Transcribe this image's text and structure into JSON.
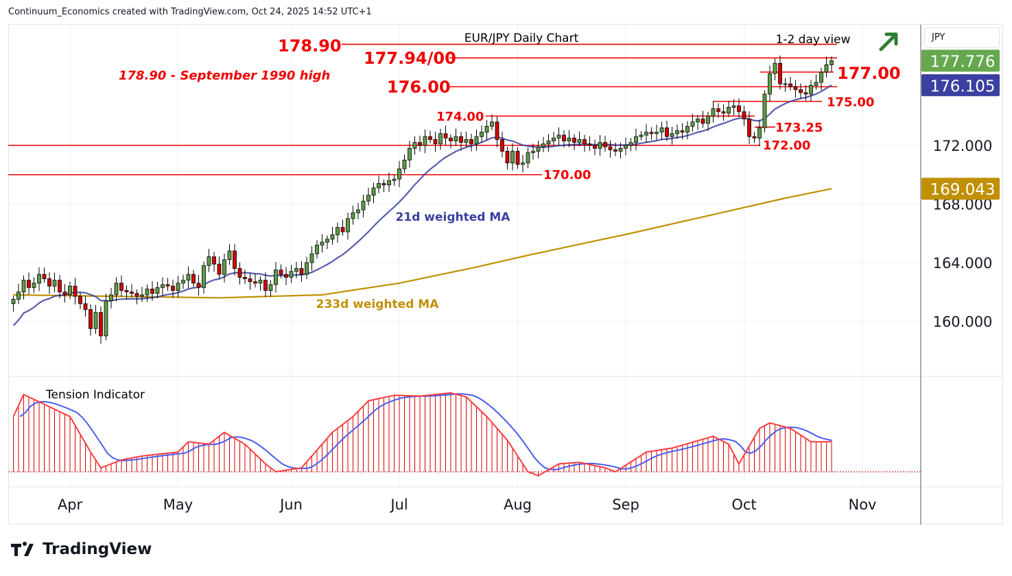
{
  "header": "Continuum_Economics created with TradingView.com, Oct 24, 2025 14:52 UTC+1",
  "title": "EUR/JPY Daily Chart",
  "view": "1-2 day view",
  "currency": "JPY",
  "logo": "TradingView",
  "colors": {
    "up": "#5d9c46",
    "down": "#d10000",
    "ma21": "#3a3fa0",
    "ma233": "#c09000",
    "level": "#f00000",
    "arrow": "#2e7d32"
  },
  "annotations": {
    "note": "178.90 - September 1990 high",
    "ma21_label": "21d weighted MA",
    "ma233_label": "233d weighted MA",
    "tension_label": "Tension Indicator"
  },
  "levels": [
    {
      "value": 178.9,
      "label": "178.90"
    },
    {
      "value": 177.97,
      "label": "177.94/00"
    },
    {
      "value": 177.0,
      "label": "177.00"
    },
    {
      "value": 176.0,
      "label": "176.00"
    },
    {
      "value": 175.0,
      "label": "175.00"
    },
    {
      "value": 174.0,
      "label": "174.00"
    },
    {
      "value": 173.25,
      "label": "173.25"
    },
    {
      "value": 172.0,
      "label": "172.00"
    },
    {
      "value": 170.0,
      "label": "170.00"
    }
  ],
  "chart_data": {
    "type": "candlestick",
    "title": "EUR/JPY Daily Chart",
    "y_ticks": [
      "160.000",
      "164.000",
      "168.000",
      "172.000"
    ],
    "y_tick_values": [
      160,
      164,
      168,
      172
    ],
    "price_badges": [
      {
        "label": "177.776",
        "value": 177.776,
        "color": "#66a84f"
      },
      {
        "label": "176.105",
        "value": 176.105,
        "color": "#3a3fa0"
      },
      {
        "label": "169.043",
        "value": 169.043,
        "color": "#c09000"
      }
    ],
    "x_ticks": [
      {
        "label": "Apr",
        "index": 11
      },
      {
        "label": "May",
        "index": 32
      },
      {
        "label": "Jun",
        "index": 54
      },
      {
        "label": "Jul",
        "index": 75
      },
      {
        "label": "Aug",
        "index": 98
      },
      {
        "label": "Sep",
        "index": 119
      },
      {
        "label": "Oct",
        "index": 142
      },
      {
        "label": "Nov",
        "index": 165
      }
    ],
    "ylim": [
      157.5,
      180.5
    ],
    "closes": [
      161.5,
      162.0,
      162.8,
      162.3,
      162.6,
      163.2,
      162.9,
      162.4,
      162.8,
      162.0,
      161.8,
      162.4,
      161.7,
      161.2,
      160.8,
      159.5,
      160.6,
      159.0,
      161.4,
      161.8,
      162.6,
      162.1,
      162.0,
      161.9,
      161.7,
      161.8,
      162.2,
      161.9,
      162.3,
      162.5,
      162.4,
      162.1,
      162.6,
      162.8,
      163.2,
      162.6,
      162.3,
      163.8,
      164.4,
      163.9,
      163.2,
      164.2,
      164.8,
      163.6,
      163.0,
      162.9,
      162.7,
      162.6,
      162.8,
      162.1,
      162.5,
      163.5,
      163.2,
      163.0,
      163.4,
      163.6,
      163.2,
      164.0,
      164.6,
      165.2,
      165.4,
      165.6,
      165.9,
      166.4,
      166.1,
      167.0,
      167.4,
      167.6,
      168.2,
      168.6,
      169.1,
      169.4,
      169.3,
      169.6,
      169.7,
      170.4,
      171.0,
      171.8,
      172.2,
      172.0,
      172.6,
      172.4,
      172.1,
      172.8,
      172.5,
      172.3,
      172.6,
      172.2,
      172.4,
      172.1,
      172.6,
      172.9,
      173.3,
      173.6,
      172.4,
      171.6,
      170.8,
      171.6,
      170.7,
      170.8,
      171.5,
      171.6,
      171.9,
      172.1,
      172.3,
      172.5,
      172.7,
      172.3,
      172.5,
      172.2,
      172.4,
      172.1,
      172.0,
      171.8,
      172.2,
      171.9,
      171.7,
      171.6,
      171.8,
      172.0,
      172.2,
      172.6,
      172.7,
      172.9,
      172.8,
      172.9,
      173.2,
      172.6,
      172.8,
      173.0,
      172.9,
      173.3,
      173.6,
      173.8,
      173.5,
      174.0,
      174.5,
      174.3,
      174.2,
      174.6,
      174.7,
      174.3,
      173.8,
      172.6,
      172.5,
      173.2,
      175.5,
      176.9,
      177.6,
      176.2,
      176.2,
      176.0,
      175.8,
      175.6,
      175.5,
      176.1,
      176.3,
      177.0,
      177.5,
      177.776
    ],
    "ma233_keypoints": [
      [
        0,
        161.8
      ],
      [
        40,
        161.6
      ],
      [
        60,
        161.8
      ],
      [
        75,
        162.6
      ],
      [
        90,
        163.7
      ],
      [
        100,
        164.5
      ],
      [
        120,
        166.0
      ],
      [
        140,
        167.6
      ],
      [
        150,
        168.4
      ],
      [
        159,
        169.043
      ]
    ],
    "tension_keypoints": [
      [
        0,
        70
      ],
      [
        2,
        98
      ],
      [
        11,
        70
      ],
      [
        15,
        25
      ],
      [
        17,
        5
      ],
      [
        21,
        15
      ],
      [
        25,
        20
      ],
      [
        32,
        25
      ],
      [
        34,
        38
      ],
      [
        38,
        35
      ],
      [
        41,
        50
      ],
      [
        45,
        35
      ],
      [
        49,
        10
      ],
      [
        51,
        0
      ],
      [
        56,
        5
      ],
      [
        62,
        50
      ],
      [
        66,
        70
      ],
      [
        69,
        90
      ],
      [
        74,
        97
      ],
      [
        79,
        96
      ],
      [
        85,
        100
      ],
      [
        88,
        95
      ],
      [
        92,
        70
      ],
      [
        96,
        40
      ],
      [
        100,
        0
      ],
      [
        102,
        -5
      ],
      [
        106,
        10
      ],
      [
        110,
        12
      ],
      [
        115,
        5
      ],
      [
        117,
        0
      ],
      [
        123,
        25
      ],
      [
        128,
        30
      ],
      [
        136,
        45
      ],
      [
        139,
        35
      ],
      [
        141,
        10
      ],
      [
        145,
        55
      ],
      [
        147,
        62
      ],
      [
        151,
        55
      ],
      [
        155,
        38
      ],
      [
        159,
        38
      ]
    ]
  }
}
